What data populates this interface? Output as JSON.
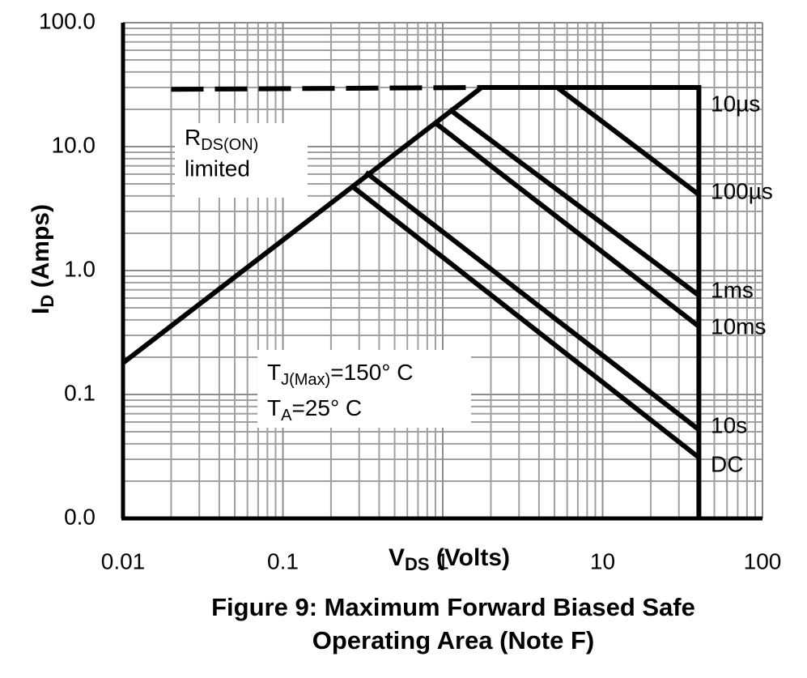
{
  "chart_data": {
    "type": "line",
    "title": [
      "Figure 9: Maximum Forward Biased Safe",
      "Operating Area (Note F)"
    ],
    "x_label": {
      "main": "V",
      "sub": "DS",
      "rest": " (Volts)"
    },
    "y_label": {
      "main": "I",
      "sub": "D",
      "rest": " (Amps)"
    },
    "log_x": true,
    "log_y": true,
    "grid": true,
    "xlim": [
      0.01,
      100
    ],
    "ylim": [
      0.01,
      100
    ],
    "xticks": [
      0.01,
      0.1,
      1,
      10,
      100
    ],
    "yticks": [
      {
        "value": 100,
        "label": "100.0"
      },
      {
        "value": 10,
        "label": "10.0"
      },
      {
        "value": 1,
        "label": "1.0"
      },
      {
        "value": 0.1,
        "label": "0.1"
      },
      {
        "value": 0.01,
        "label": "0.0"
      }
    ],
    "xminorticks": [
      0.02,
      0.03,
      0.04,
      0.05,
      0.06,
      0.07,
      0.08,
      0.09,
      0.2,
      0.3,
      0.4,
      0.5,
      0.6,
      0.7,
      0.8,
      0.9,
      2,
      3,
      4,
      5,
      6,
      7,
      8,
      9,
      20,
      30,
      40,
      50,
      60,
      70,
      80,
      90
    ],
    "yminorticks": [
      0.02,
      0.03,
      0.04,
      0.05,
      0.06,
      0.07,
      0.08,
      0.09,
      0.2,
      0.3,
      0.4,
      0.5,
      0.6,
      0.7,
      0.8,
      0.9,
      2,
      3,
      4,
      5,
      6,
      7,
      8,
      9,
      20,
      30,
      40,
      50,
      60,
      70,
      80,
      90
    ],
    "rds_limit": {
      "x": [
        0.01,
        1.75
      ],
      "y": [
        0.18,
        30
      ]
    },
    "rds_limit_dashed": {
      "x": [
        0.02,
        1.75
      ],
      "y": [
        29,
        30
      ]
    },
    "series": [
      {
        "name": "10µs",
        "color": "#000000",
        "x": [
          1.75,
          40,
          40
        ],
        "y": [
          30,
          30,
          0.01
        ]
      },
      {
        "name": "100µs",
        "color": "#000000",
        "x": [
          5.2,
          40
        ],
        "y": [
          30,
          4.1
        ]
      },
      {
        "name": "1ms",
        "color": "#000000",
        "x": [
          1.1,
          40
        ],
        "y": [
          20,
          0.63
        ]
      },
      {
        "name": "10ms",
        "color": "#000000",
        "x": [
          0.9,
          40
        ],
        "y": [
          15.5,
          0.354
        ]
      },
      {
        "name": "10s",
        "color": "#000000",
        "x": [
          0.33,
          40
        ],
        "y": [
          6.2,
          0.052
        ]
      },
      {
        "name": "DC",
        "color": "#000000",
        "x": [
          0.27,
          40
        ],
        "y": [
          4.8,
          0.031
        ]
      }
    ],
    "annotations": [
      {
        "main": "R",
        "sub": "DS(ON)",
        "line2": "limited"
      },
      {
        "main": "T",
        "sub": "J(Max)",
        "rest": "=150°  C"
      },
      {
        "main": "T",
        "sub": "A",
        "rest": "=25°  C"
      }
    ]
  }
}
